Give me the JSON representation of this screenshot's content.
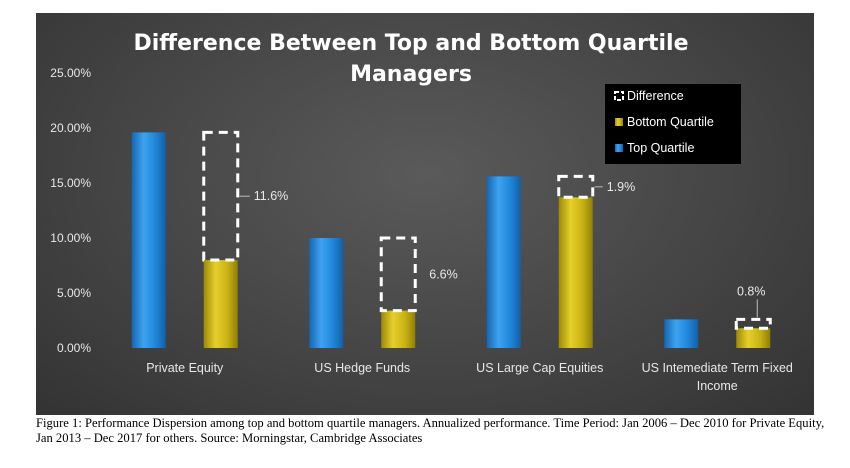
{
  "chart_data": {
    "type": "bar",
    "title_lines": [
      "Difference Between Top and Bottom Quartile",
      "Managers"
    ],
    "categories": [
      [
        "Private Equity"
      ],
      [
        "US Hedge Funds"
      ],
      [
        "US Large Cap Equities"
      ],
      [
        "US Intemediate Term Fixed",
        "Income"
      ]
    ],
    "series": [
      {
        "name": "Top Quartile",
        "values": [
          19.6,
          10.0,
          15.6,
          2.6
        ]
      },
      {
        "name": "Bottom Quartile",
        "values": [
          8.0,
          3.4,
          13.7,
          1.8
        ]
      }
    ],
    "difference": {
      "name": "Difference",
      "values": [
        11.6,
        6.6,
        1.9,
        0.8
      ],
      "labels": [
        "11.6%",
        "6.6%",
        "1.9%",
        "0.8%"
      ]
    },
    "legend_order": [
      "Difference",
      "Bottom Quartile",
      "Top Quartile"
    ],
    "legend_position": "top-right",
    "ylim": [
      0,
      25
    ],
    "yticks": [
      0,
      5,
      10,
      15,
      20,
      25
    ],
    "ytick_labels": [
      "0.00%",
      "5.00%",
      "10.00%",
      "15.00%",
      "20.00%",
      "25.00%"
    ],
    "colors": {
      "top_quartile": "#1f86d9",
      "bottom_quartile": "#c9b214",
      "difference": "#ffffff",
      "background": "#474747",
      "legend_background": "#000000"
    }
  },
  "caption": "Figure 1: Performance Dispersion among top and bottom quartile managers. Annualized performance. Time Period: Jan 2006 – Dec 2010 for Private Equity, Jan 2013 – Dec 2017 for others. Source: Morningstar, Cambridge Associates"
}
